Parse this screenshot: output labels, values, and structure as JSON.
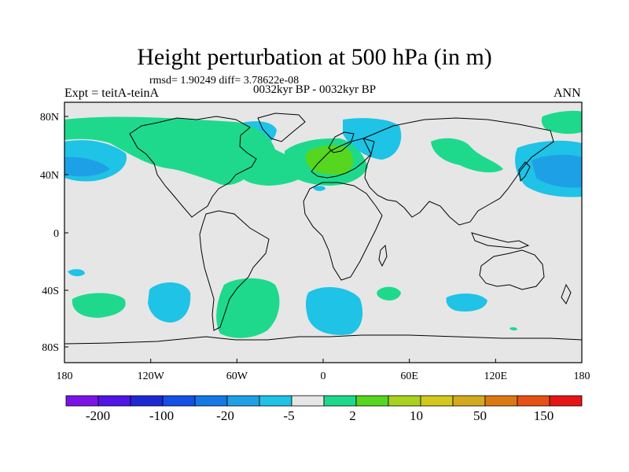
{
  "title": "Height perturbation at 500 hPa (in m)",
  "stats_line": "rmsd= 1.90249 diff= 3.78622e-08",
  "experiment_label": "Expt = teitA-teinA",
  "period_label": "0032kyr BP - 0032kyr BP",
  "season_label": "ANN",
  "colors": {
    "background_field": "#e6e6e6",
    "positive_2_10": "#1ed98c",
    "positive_10_20": "#56d61e",
    "negative_5_2": "#1ec3e6",
    "negative_20_5": "#1ea0e6",
    "coastline": "#000000"
  },
  "map": {
    "lon_ticks": [
      "180",
      "120W",
      "60W",
      "0",
      "60E",
      "120E",
      "180"
    ],
    "lat_ticks": [
      "80N",
      "40N",
      "0",
      "40S",
      "80S"
    ]
  },
  "colorbar": {
    "labels": [
      "-200",
      "-100",
      "-20",
      "-5",
      "2",
      "10",
      "50",
      "150"
    ],
    "colors": [
      "#7a14e6",
      "#5014e6",
      "#1e28d2",
      "#1450e6",
      "#1478e6",
      "#1ea0e6",
      "#1ec3e6",
      "#e6e6e6",
      "#1ed98c",
      "#56d61e",
      "#a8d21e",
      "#d2c81e",
      "#d2aa1e",
      "#dc7814",
      "#e65014",
      "#e61414"
    ]
  }
}
